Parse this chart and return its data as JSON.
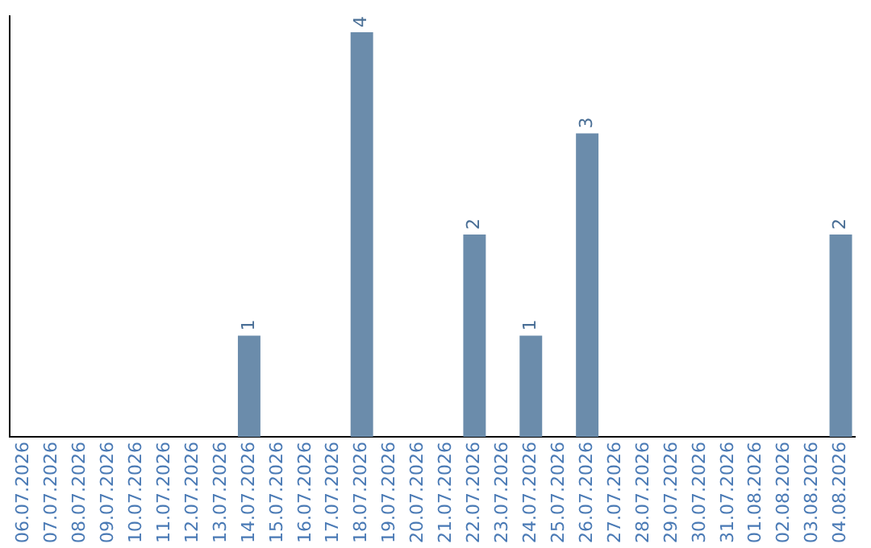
{
  "chart_data": {
    "type": "bar",
    "categories": [
      "06.07.2026",
      "07.07.2026",
      "08.07.2026",
      "09.07.2026",
      "10.07.2026",
      "11.07.2026",
      "12.07.2026",
      "13.07.2026",
      "14.07.2026",
      "15.07.2026",
      "16.07.2026",
      "17.07.2026",
      "18.07.2026",
      "19.07.2026",
      "20.07.2026",
      "21.07.2026",
      "22.07.2026",
      "23.07.2026",
      "24.07.2026",
      "25.07.2026",
      "26.07.2026",
      "27.07.2026",
      "28.07.2026",
      "29.07.2026",
      "30.07.2026",
      "31.07.2026",
      "01.08.2026",
      "02.08.2026",
      "03.08.2026",
      "04.08.2026"
    ],
    "values": [
      0,
      0,
      0,
      0,
      0,
      0,
      0,
      0,
      1,
      0,
      0,
      0,
      4,
      0,
      0,
      0,
      2,
      0,
      1,
      0,
      3,
      0,
      0,
      0,
      0,
      0,
      0,
      0,
      0,
      2
    ],
    "value_labels": [
      null,
      null,
      null,
      null,
      null,
      null,
      null,
      null,
      "1",
      null,
      null,
      null,
      "4",
      null,
      null,
      null,
      "2",
      null,
      "1",
      null,
      "3",
      null,
      null,
      null,
      null,
      null,
      null,
      null,
      null,
      "2"
    ],
    "color": "#6b8cab",
    "tick_labels": "x",
    "grid": false,
    "legend": false
  }
}
